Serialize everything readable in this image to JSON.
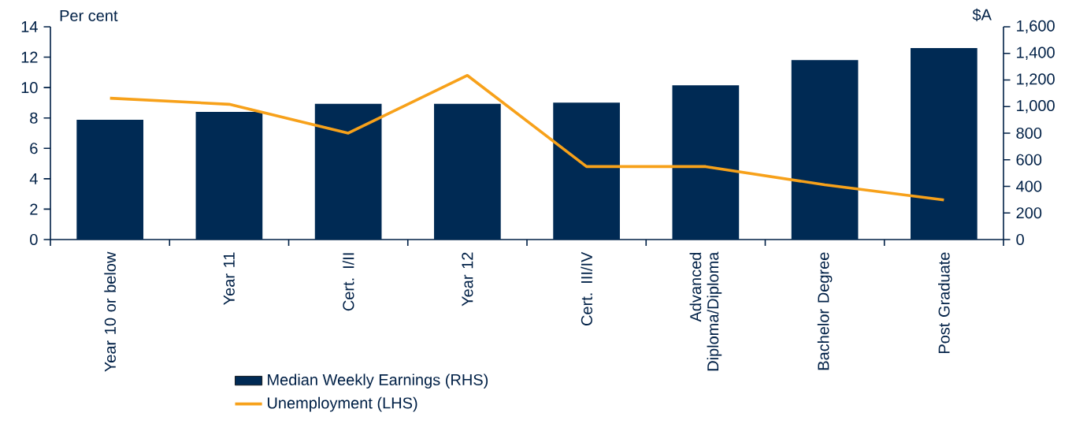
{
  "chart_data": {
    "type": "bar",
    "categories": [
      "Year 10 or below",
      "Year 11",
      "Cert. I/II",
      "Year 12",
      "Cert. III/IV",
      "Advanced Diploma/Diploma",
      "Bachelor Degree",
      "Post Graduate"
    ],
    "series": [
      {
        "name": "Median Weekly Earnings (RHS)",
        "axis": "y2",
        "color": "#002a54",
        "values": [
          900,
          960,
          1020,
          1020,
          1030,
          1160,
          1350,
          1440
        ]
      },
      {
        "name": "Unemployment (LHS)",
        "type": "line",
        "color": "#f7a11a",
        "values": [
          9.3,
          8.9,
          7.0,
          10.8,
          4.8,
          4.8,
          3.6,
          2.6
        ]
      }
    ],
    "ylabel": "Per cent",
    "y2label": "$A",
    "ylim": [
      0,
      14
    ],
    "yticks": [
      0,
      2,
      4,
      6,
      8,
      10,
      12,
      14
    ],
    "y2lim": [
      0,
      1600
    ],
    "y2ticks": [
      0,
      200,
      400,
      600,
      800,
      {
        "value": 1000,
        "label": "1,000"
      },
      {
        "value": 1200,
        "label": "1,200"
      },
      {
        "value": 1400,
        "label": "1,400"
      },
      {
        "value": 1600,
        "label": "1,600"
      }
    ],
    "legend": "bottom"
  }
}
